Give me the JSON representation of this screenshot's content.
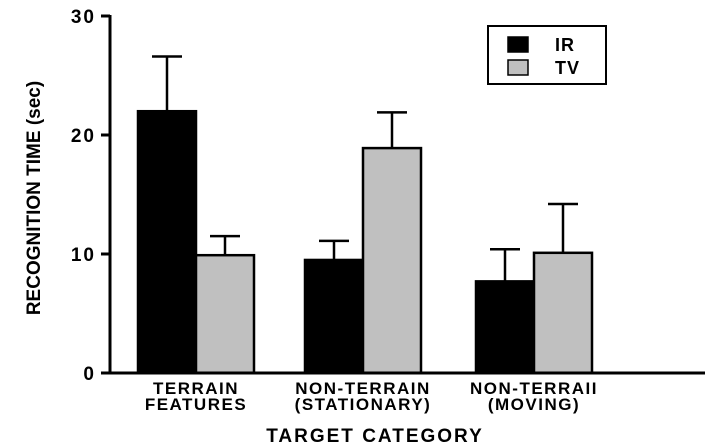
{
  "chart_data": {
    "type": "bar",
    "categories": [
      [
        "TERRAIN",
        "FEATURES"
      ],
      [
        "NON-TERRAIN",
        "(STATIONARY)"
      ],
      [
        "NON-TERRAII",
        "(MOVING)"
      ]
    ],
    "series": [
      {
        "name": "IR",
        "color": "#000000",
        "values": [
          22.0,
          9.5,
          7.7
        ],
        "error": [
          4.6,
          1.6,
          2.7
        ]
      },
      {
        "name": "TV",
        "color": "#c0c0c0",
        "values": [
          9.9,
          18.9,
          10.1
        ],
        "error": [
          1.6,
          3.0,
          4.1
        ]
      }
    ],
    "xlabel": "TARGET CATEGORY",
    "ylabel": "RECOGNITION TIME (sec)",
    "ylim": [
      0,
      30
    ],
    "yticks": [
      0,
      10,
      20,
      30
    ],
    "legend": "top-right",
    "grid": false
  }
}
